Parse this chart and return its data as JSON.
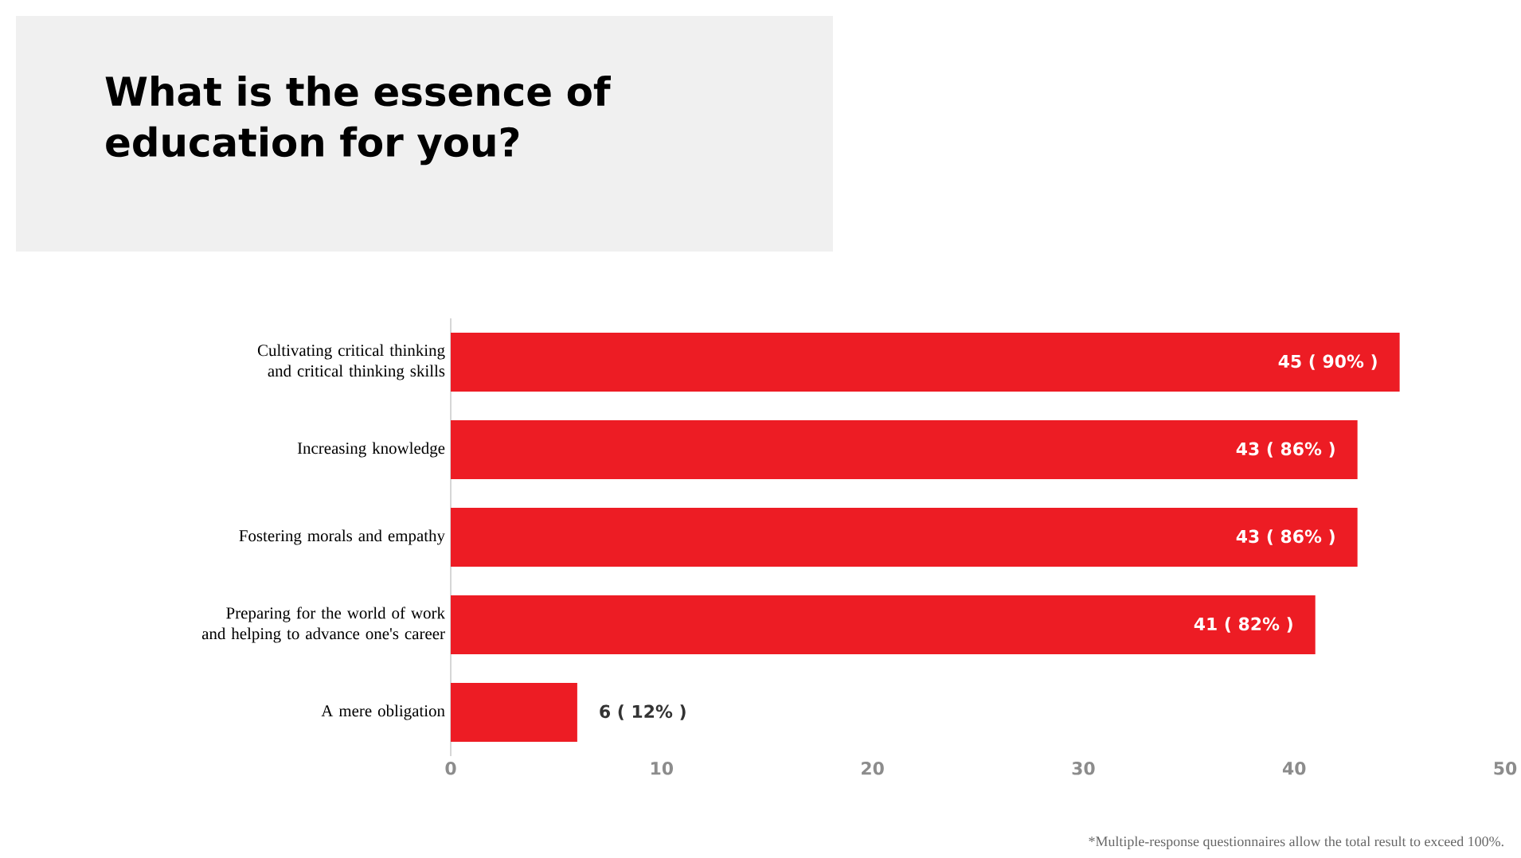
{
  "chart_data": {
    "type": "bar",
    "orientation": "horizontal",
    "title": "What is the essence of education for you?",
    "categories": [
      "Cultivating critical thinking and critical thinking skills",
      "Increasing knowledge",
      "Fostering morals and empathy",
      "Preparing for the world of work and helping to advance one's career",
      "A mere obligation"
    ],
    "values": [
      45,
      43,
      43,
      41,
      6
    ],
    "value_labels": [
      "45 ( 90% )",
      "43 ( 86% )",
      "43 ( 86% )",
      "41 ( 82% )",
      "6 ( 12% )"
    ],
    "color": "#ed1c24",
    "xlim": [
      0,
      50
    ],
    "xticks": [
      0,
      10,
      20,
      30,
      40,
      50
    ],
    "annotations": [
      "*Multiple-response questionnaires allow the total result to exceed 100%."
    ]
  }
}
